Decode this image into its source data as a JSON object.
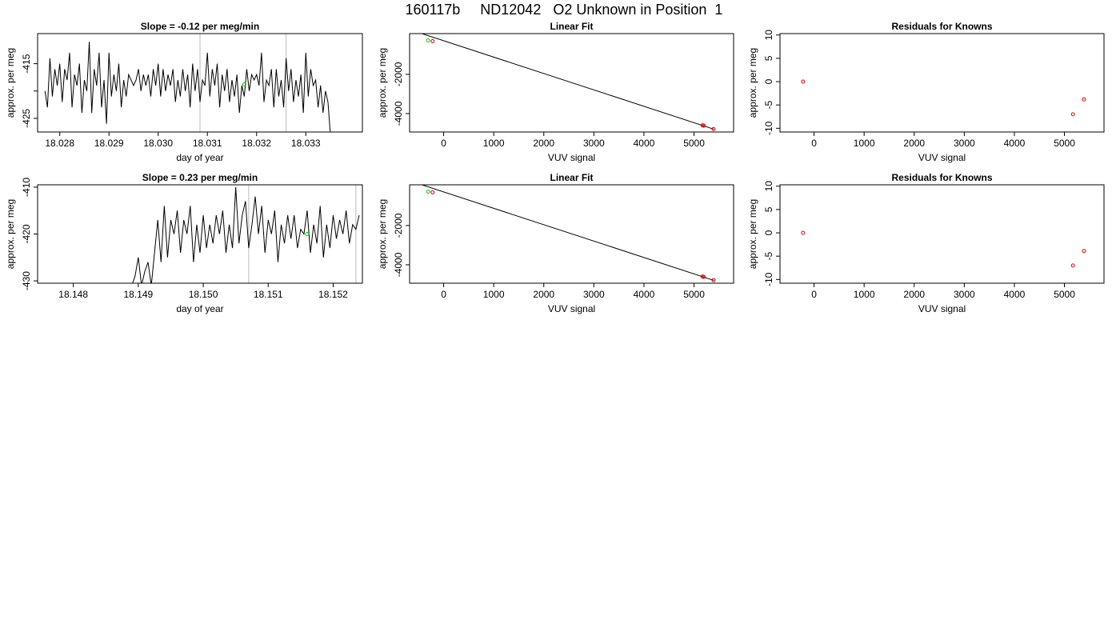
{
  "title": "160117b     ND12042   O2 Unknown in Position  1",
  "colors": {
    "line": "#000000",
    "green": "#00cc00",
    "red": "#dd0000",
    "vline": "#bbbbbb"
  },
  "chart_data": [
    {
      "id": "ts1",
      "type": "line",
      "title": "Slope =  -0.12  per meg/min",
      "xlabel": "day of year",
      "ylabel": "approx. per meg",
      "xlim": [
        18.02755,
        18.03415
      ],
      "ylim": [
        -427.5,
        -409.5
      ],
      "xticks": [
        18.028,
        18.029,
        18.03,
        18.031,
        18.032,
        18.033
      ],
      "xticklabels": [
        "18.028",
        "18.029",
        "18.030",
        "18.031",
        "18.032",
        "18.033"
      ],
      "yticks": [
        -425,
        -420,
        -415
      ],
      "yticklabels": [
        "-425",
        "",
        "-415"
      ],
      "vlines": [
        18.03085,
        18.0326
      ],
      "x": [
        18.0277,
        18.02775,
        18.0278,
        18.02785,
        18.0279,
        18.02795,
        18.028,
        18.02805,
        18.0281,
        18.02815,
        18.0282,
        18.02825,
        18.0283,
        18.02835,
        18.0284,
        18.02845,
        18.0285,
        18.02855,
        18.0286,
        18.02865,
        18.0287,
        18.02875,
        18.0288,
        18.02885,
        18.0289,
        18.02895,
        18.029,
        18.02905,
        18.0291,
        18.02915,
        18.0292,
        18.02925,
        18.0293,
        18.02935,
        18.0294,
        18.02945,
        18.0295,
        18.02955,
        18.0296,
        18.02965,
        18.0297,
        18.02975,
        18.0298,
        18.02985,
        18.0299,
        18.02995,
        18.03,
        18.03005,
        18.0301,
        18.03015,
        18.0302,
        18.03025,
        18.0303,
        18.03035,
        18.0304,
        18.03045,
        18.0305,
        18.03055,
        18.0306,
        18.03065,
        18.0307,
        18.03075,
        18.0308,
        18.03085,
        18.0309,
        18.03095,
        18.031,
        18.03105,
        18.0311,
        18.03115,
        18.0312,
        18.03125,
        18.0313,
        18.03135,
        18.0314,
        18.03145,
        18.0315,
        18.03155,
        18.0316,
        18.03165,
        18.0317,
        18.03175,
        18.0318,
        18.03185,
        18.0319,
        18.03195,
        18.032,
        18.03205,
        18.0321,
        18.03215,
        18.0322,
        18.03225,
        18.0323,
        18.03235,
        18.0324,
        18.03245,
        18.0325,
        18.03255,
        18.0326,
        18.03265,
        18.0327,
        18.03275,
        18.0328,
        18.03285,
        18.0329,
        18.03295,
        18.033,
        18.03305,
        18.0331,
        18.03315,
        18.0332,
        18.03325,
        18.0333,
        18.03335,
        18.0334,
        18.03345,
        18.0335
      ],
      "y": [
        -420,
        -423,
        -414,
        -421,
        -416,
        -419,
        -415,
        -422,
        -416,
        -418,
        -413,
        -423,
        -417,
        -419,
        -415,
        -424,
        -418,
        -420,
        -411,
        -424,
        -416,
        -419,
        -413,
        -423,
        -418,
        -426,
        -413,
        -421,
        -417,
        -420,
        -415,
        -423,
        -418,
        -421,
        -417,
        -418,
        -419,
        -418,
        -416,
        -420,
        -417,
        -419,
        -417,
        -421,
        -416,
        -419,
        -415,
        -421,
        -416,
        -420,
        -417,
        -419,
        -416,
        -422,
        -418,
        -421,
        -416,
        -420,
        -417,
        -423,
        -415,
        -420,
        -416,
        -422,
        -418,
        -419,
        -413,
        -421,
        -416,
        -419,
        -415,
        -423,
        -417,
        -420,
        -416,
        -422,
        -418,
        -421,
        -417,
        -424,
        -419,
        -421,
        -416,
        -420,
        -417,
        -418,
        -417,
        -419,
        -413,
        -422,
        -418,
        -419,
        -416,
        -423,
        -416,
        -421,
        -418,
        -423,
        -414,
        -420,
        -416,
        -422,
        -418,
        -421,
        -417,
        -424,
        -413,
        -421,
        -416,
        -419,
        -418,
        -423,
        -419,
        -424,
        -420,
        -422,
        -428
      ],
      "green": [
        [
          18.03175,
          -418.8
        ]
      ]
    },
    {
      "id": "fit1",
      "type": "scatter",
      "title": "Linear Fit",
      "xlabel": "VUV signal",
      "ylabel": "approx. per meg",
      "xlim": [
        -680,
        5790
      ],
      "ylim": [
        -4940,
        75
      ],
      "xticks": [
        0,
        1000,
        2000,
        3000,
        4000,
        5000
      ],
      "xticklabels": [
        "0",
        "1000",
        "2000",
        "3000",
        "4000",
        "5000"
      ],
      "yticks": [
        -4000,
        -2000
      ],
      "yticklabels": [
        "-4000",
        "-2000"
      ],
      "line": [
        [
          -500,
          130
        ],
        [
          5400,
          -4800
        ]
      ],
      "green": [
        [
          -310,
          -270
        ]
      ],
      "red": [
        [
          -220,
          -310
        ],
        [
          5170,
          -4600
        ],
        [
          5195,
          -4620
        ],
        [
          5390,
          -4790
        ]
      ]
    },
    {
      "id": "res1",
      "type": "scatter",
      "title": "Residuals for Knowns",
      "xlabel": "VUV signal",
      "ylabel": "approx. per meg",
      "xlim": [
        -680,
        5790
      ],
      "ylim": [
        -10.8,
        10.3
      ],
      "xticks": [
        0,
        1000,
        2000,
        3000,
        4000,
        5000
      ],
      "xticklabels": [
        "0",
        "1000",
        "2000",
        "3000",
        "4000",
        "5000"
      ],
      "yticks": [
        -10,
        -5,
        0,
        5,
        10
      ],
      "yticklabels": [
        "-10",
        "-5",
        "0",
        "5",
        "10"
      ],
      "red": [
        [
          -220,
          0
        ],
        [
          5170,
          -7
        ],
        [
          5390,
          -3.8
        ]
      ]
    },
    {
      "id": "ts2",
      "type": "line",
      "title": "Slope =  0.23  per meg/min",
      "xlabel": "day of year",
      "ylabel": "approx. per meg",
      "xlim": [
        18.14745,
        18.15245
      ],
      "ylim": [
        -430.5,
        -409.5
      ],
      "xticks": [
        18.148,
        18.149,
        18.15,
        18.151,
        18.152
      ],
      "xticklabels": [
        "18.148",
        "18.149",
        "18.150",
        "18.151",
        "18.152"
      ],
      "yticks": [
        -430,
        -420,
        -410
      ],
      "yticklabels": [
        "-430",
        "-420",
        "-410"
      ],
      "vlines": [
        18.1507,
        18.15235
      ],
      "x": [
        18.1489,
        18.14895,
        18.149,
        18.14905,
        18.1491,
        18.14915,
        18.1492,
        18.14925,
        18.1493,
        18.14935,
        18.1494,
        18.14945,
        18.1495,
        18.14955,
        18.1496,
        18.14965,
        18.1497,
        18.14975,
        18.1498,
        18.14985,
        18.1499,
        18.14995,
        18.15,
        18.15005,
        18.1501,
        18.15015,
        18.1502,
        18.15025,
        18.1503,
        18.15035,
        18.1504,
        18.15045,
        18.1505,
        18.15055,
        18.1506,
        18.15065,
        18.1507,
        18.15075,
        18.1508,
        18.15085,
        18.1509,
        18.15095,
        18.151,
        18.15105,
        18.1511,
        18.15115,
        18.1512,
        18.15125,
        18.1513,
        18.15135,
        18.1514,
        18.15145,
        18.1515,
        18.15155,
        18.1516,
        18.15165,
        18.1517,
        18.15175,
        18.1518,
        18.15185,
        18.1519,
        18.15195,
        18.152,
        18.15205,
        18.1521,
        18.15215,
        18.1522,
        18.15225,
        18.1523,
        18.15235,
        18.1524
      ],
      "y": [
        -431,
        -429,
        -425,
        -431,
        -428,
        -426,
        -431,
        -424,
        -417,
        -426,
        -414,
        -425,
        -417,
        -420,
        -415,
        -424,
        -417,
        -420,
        -414,
        -426,
        -418,
        -424,
        -416,
        -423,
        -418,
        -422,
        -416,
        -420,
        -415,
        -424,
        -418,
        -423,
        -410,
        -422,
        -416,
        -413,
        -423,
        -418,
        -412,
        -420,
        -414,
        -424,
        -417,
        -420,
        -415,
        -426,
        -418,
        -422,
        -416,
        -421,
        -416,
        -423,
        -419,
        -420,
        -415,
        -424,
        -418,
        -422,
        -414,
        -425,
        -418,
        -423,
        -416,
        -421,
        -417,
        -420,
        -415,
        -422,
        -418,
        -419,
        -416
      ],
      "green": [
        [
          18.1516,
          -420
        ]
      ]
    },
    {
      "id": "fit2",
      "type": "scatter",
      "title": "Linear Fit",
      "xlabel": "VUV signal",
      "ylabel": "approx. per meg",
      "xlim": [
        -680,
        5790
      ],
      "ylim": [
        -4940,
        75
      ],
      "xticks": [
        0,
        1000,
        2000,
        3000,
        4000,
        5000
      ],
      "xticklabels": [
        "0",
        "1000",
        "2000",
        "3000",
        "4000",
        "5000"
      ],
      "yticks": [
        -4000,
        -2000
      ],
      "yticklabels": [
        "-4000",
        "-2000"
      ],
      "line": [
        [
          -500,
          130
        ],
        [
          5400,
          -4800
        ]
      ],
      "green": [
        [
          -310,
          -270
        ]
      ],
      "red": [
        [
          -220,
          -310
        ],
        [
          5170,
          -4600
        ],
        [
          5195,
          -4620
        ],
        [
          5390,
          -4790
        ]
      ]
    },
    {
      "id": "res2",
      "type": "scatter",
      "title": "Residuals for Knowns",
      "xlabel": "VUV signal",
      "ylabel": "approx. per meg",
      "xlim": [
        -680,
        5790
      ],
      "ylim": [
        -10.8,
        10.3
      ],
      "xticks": [
        0,
        1000,
        2000,
        3000,
        4000,
        5000
      ],
      "xticklabels": [
        "0",
        "1000",
        "2000",
        "3000",
        "4000",
        "5000"
      ],
      "yticks": [
        -10,
        -5,
        0,
        5,
        10
      ],
      "yticklabels": [
        "-10",
        "-5",
        "0",
        "5",
        "10"
      ],
      "red": [
        [
          -220,
          0
        ],
        [
          5170,
          -7
        ],
        [
          5390,
          -3.9
        ]
      ]
    }
  ]
}
